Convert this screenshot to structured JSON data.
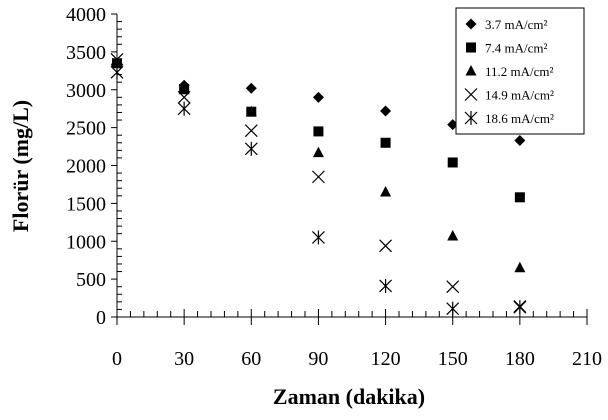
{
  "chart_data": {
    "type": "scatter",
    "title": "",
    "xlabel": "Zaman (dakika)",
    "ylabel": "Florür (mg/L)",
    "xlim": [
      0,
      210
    ],
    "ylim": [
      0,
      4000
    ],
    "x_ticks": [
      0,
      30,
      60,
      90,
      120,
      150,
      180,
      210
    ],
    "y_ticks": [
      0,
      500,
      1000,
      1500,
      2000,
      2500,
      3000,
      3500,
      4000
    ],
    "x_tick_labels": [
      "0",
      "30",
      "60",
      "90",
      "120",
      "150",
      "180",
      "210"
    ],
    "y_tick_labels": [
      "0",
      "500",
      "1000",
      "1500",
      "2000",
      "2500",
      "3000",
      "3500",
      "4000"
    ],
    "grid": false,
    "legend_position": "top-right",
    "series": [
      {
        "name": "3.7 mA/cm²",
        "marker": "diamond",
        "x": [
          0,
          30,
          60,
          90,
          120,
          150,
          180
        ],
        "y": [
          3350,
          3060,
          3020,
          2900,
          2720,
          2540,
          2330
        ]
      },
      {
        "name": "7.4 mA/cm²",
        "marker": "square",
        "x": [
          0,
          30,
          60,
          90,
          120,
          150,
          180
        ],
        "y": [
          3350,
          3010,
          2710,
          2450,
          2300,
          2040,
          1580
        ]
      },
      {
        "name": "11.2 mA/cm²",
        "marker": "triangle",
        "x": [
          0,
          30,
          60,
          90,
          120,
          150,
          180
        ],
        "y": [
          3350,
          3000,
          2710,
          2170,
          1650,
          1070,
          650
        ]
      },
      {
        "name": "14.9 mA/cm²",
        "marker": "x",
        "x": [
          0,
          30,
          60,
          90,
          120,
          150,
          180
        ],
        "y": [
          3400,
          2900,
          2460,
          1850,
          940,
          400,
          140
        ]
      },
      {
        "name": "18.6 mA/cm²",
        "marker": "asterisk",
        "x": [
          0,
          30,
          60,
          90,
          120,
          150,
          180
        ],
        "y": [
          3230,
          2750,
          2220,
          1050,
          410,
          110,
          130
        ]
      }
    ]
  }
}
